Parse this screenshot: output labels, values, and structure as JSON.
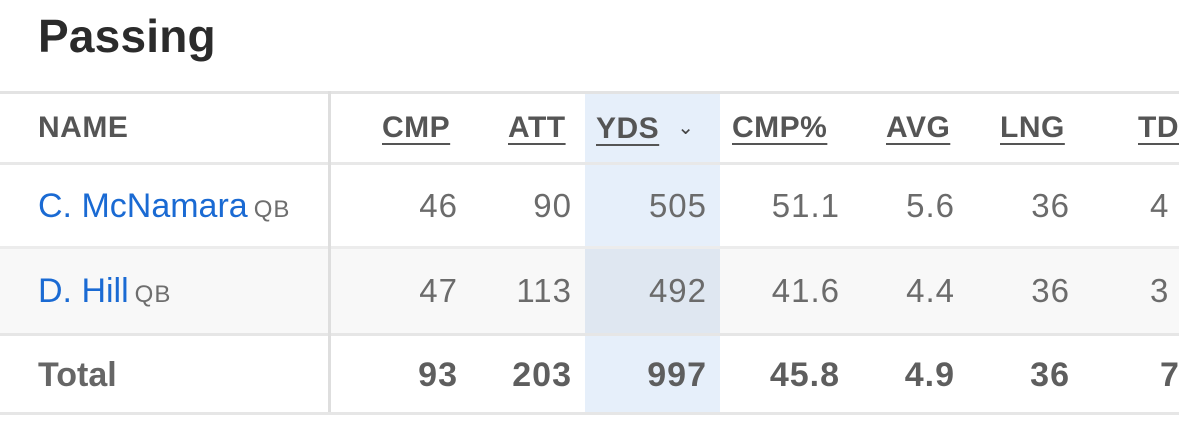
{
  "section": {
    "title": "Passing"
  },
  "table": {
    "headers": {
      "name": "NAME",
      "cmp": "CMP",
      "att": "ATT",
      "yds": "YDS",
      "cmp_pct": "CMP%",
      "avg": "AVG",
      "lng": "LNG",
      "td": "TD"
    },
    "sorted_column": "YDS",
    "sort_direction": "descending",
    "rows": [
      {
        "name": "C. McNamara",
        "pos": "QB",
        "cmp": "46",
        "att": "90",
        "yds": "505",
        "cmp_pct": "51.1",
        "avg": "5.6",
        "lng": "36",
        "td": "4"
      },
      {
        "name": "D. Hill",
        "pos": "QB",
        "cmp": "47",
        "att": "113",
        "yds": "492",
        "cmp_pct": "41.6",
        "avg": "4.4",
        "lng": "36",
        "td": "3"
      }
    ],
    "total": {
      "label": "Total",
      "cmp": "93",
      "att": "203",
      "yds": "997",
      "cmp_pct": "45.8",
      "avg": "4.9",
      "lng": "36",
      "td": "7"
    }
  },
  "colors": {
    "link": "#1a6ad3",
    "sorted_column_bg": "#e6effa"
  }
}
